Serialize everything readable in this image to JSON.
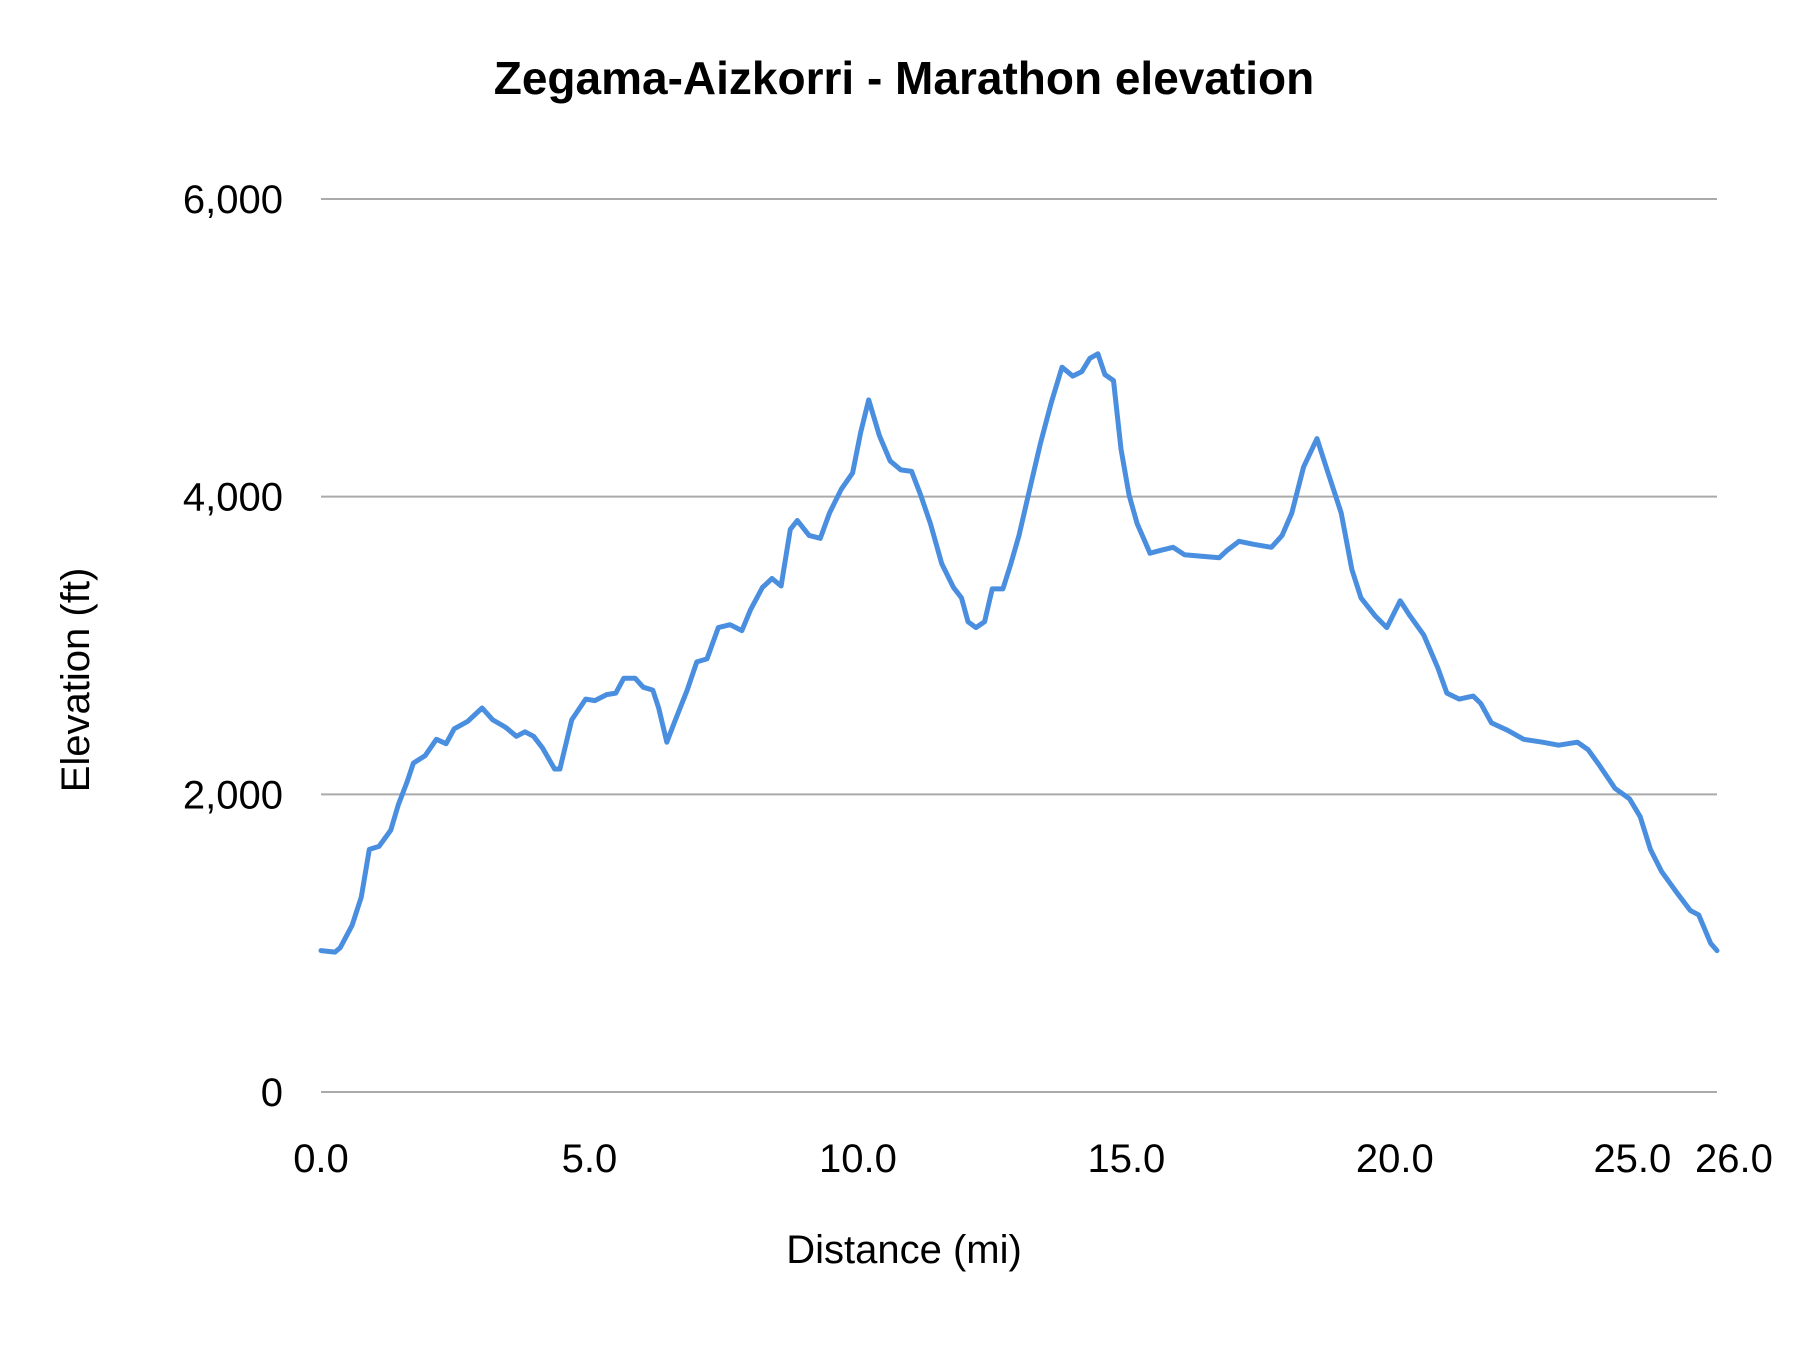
{
  "chart_data": {
    "type": "line",
    "title": "Zegama-Aizkorri - Marathon elevation",
    "xlabel": "Distance (mi)",
    "ylabel": "Elevation (ft)",
    "xlim": [
      0,
      26
    ],
    "ylim": [
      0,
      6000
    ],
    "x_ticks": [
      {
        "value": 0,
        "label": "0.0"
      },
      {
        "value": 5,
        "label": "5.0"
      },
      {
        "value": 10,
        "label": "10.0"
      },
      {
        "value": 15,
        "label": "15.0"
      },
      {
        "value": 20,
        "label": "20.0"
      },
      {
        "value": 25,
        "label": "25.0"
      },
      {
        "value": 26,
        "label": "26.0"
      }
    ],
    "y_ticks": [
      {
        "value": 0,
        "label": "0"
      },
      {
        "value": 2000,
        "label": "2,000"
      },
      {
        "value": 4000,
        "label": "4,000"
      },
      {
        "value": 6000,
        "label": "6,000"
      }
    ],
    "grid": "horizontal",
    "line_color": "#4a8ee0",
    "grid_color": "#aaaaaa",
    "series": [
      {
        "x": [
          0,
          0.26,
          0.36,
          0.58,
          0.75,
          0.9,
          1.08,
          1.3,
          1.44,
          1.6,
          1.72,
          1.94,
          2.15,
          2.33,
          2.48,
          2.73,
          2.88,
          3.0,
          3.2,
          3.44,
          3.64,
          3.8,
          3.96,
          4.13,
          4.35,
          4.45,
          4.67,
          4.93,
          5.1,
          5.32,
          5.49,
          5.64,
          5.85,
          6.0,
          6.18,
          6.29,
          6.44,
          6.6,
          6.82,
          7.0,
          7.19,
          7.4,
          7.62,
          7.84,
          8.0,
          8.22,
          8.4,
          8.57,
          8.74,
          8.87,
          9.09,
          9.3,
          9.47,
          9.69,
          9.9,
          10.05,
          10.2,
          10.4,
          10.6,
          10.8,
          11.0,
          11.17,
          11.35,
          11.56,
          11.78,
          11.93,
          12.05,
          12.2,
          12.36,
          12.5,
          12.7,
          12.85,
          13.0,
          13.2,
          13.4,
          13.6,
          13.8,
          14.0,
          14.17,
          14.32,
          14.47,
          14.6,
          14.76,
          14.9,
          15.05,
          15.2,
          15.44,
          15.65,
          15.87,
          16.08,
          16.4,
          16.73,
          16.88,
          17.1,
          17.37,
          17.7,
          17.9,
          18.08,
          18.3,
          18.55,
          18.72,
          19.0,
          19.2,
          19.37,
          19.63,
          19.85,
          20.1,
          20.28,
          20.54,
          20.8,
          20.97,
          21.2,
          21.46,
          21.6,
          21.8,
          22.1,
          22.4,
          22.75,
          23.05,
          23.4,
          23.6,
          23.8,
          24.1,
          24.37,
          24.57,
          24.76,
          24.97,
          25.23,
          25.5,
          25.66,
          25.88,
          26.0
        ],
        "y": [
          950,
          940,
          970,
          1120,
          1310,
          1630,
          1650,
          1760,
          1930,
          2080,
          2210,
          2260,
          2370,
          2340,
          2440,
          2490,
          2540,
          2580,
          2500,
          2450,
          2390,
          2420,
          2390,
          2310,
          2170,
          2170,
          2500,
          2640,
          2630,
          2670,
          2680,
          2780,
          2780,
          2720,
          2700,
          2580,
          2350,
          2500,
          2700,
          2890,
          2910,
          3120,
          3140,
          3100,
          3240,
          3390,
          3450,
          3400,
          3780,
          3840,
          3740,
          3720,
          3890,
          4050,
          4160,
          4430,
          4650,
          4410,
          4240,
          4180,
          4170,
          4010,
          3820,
          3550,
          3390,
          3320,
          3160,
          3120,
          3160,
          3380,
          3380,
          3550,
          3740,
          4050,
          4360,
          4630,
          4870,
          4810,
          4840,
          4930,
          4960,
          4820,
          4780,
          4320,
          4010,
          3820,
          3620,
          3640,
          3660,
          3610,
          3600,
          3590,
          3640,
          3700,
          3680,
          3660,
          3740,
          3890,
          4200,
          4390,
          4200,
          3890,
          3510,
          3320,
          3200,
          3120,
          3300,
          3200,
          3070,
          2850,
          2680,
          2640,
          2660,
          2610,
          2480,
          2430,
          2370,
          2350,
          2330,
          2350,
          2300,
          2200,
          2040,
          1970,
          1850,
          1630,
          1480,
          1350,
          1220,
          1190,
          1000,
          950
        ]
      }
    ]
  }
}
